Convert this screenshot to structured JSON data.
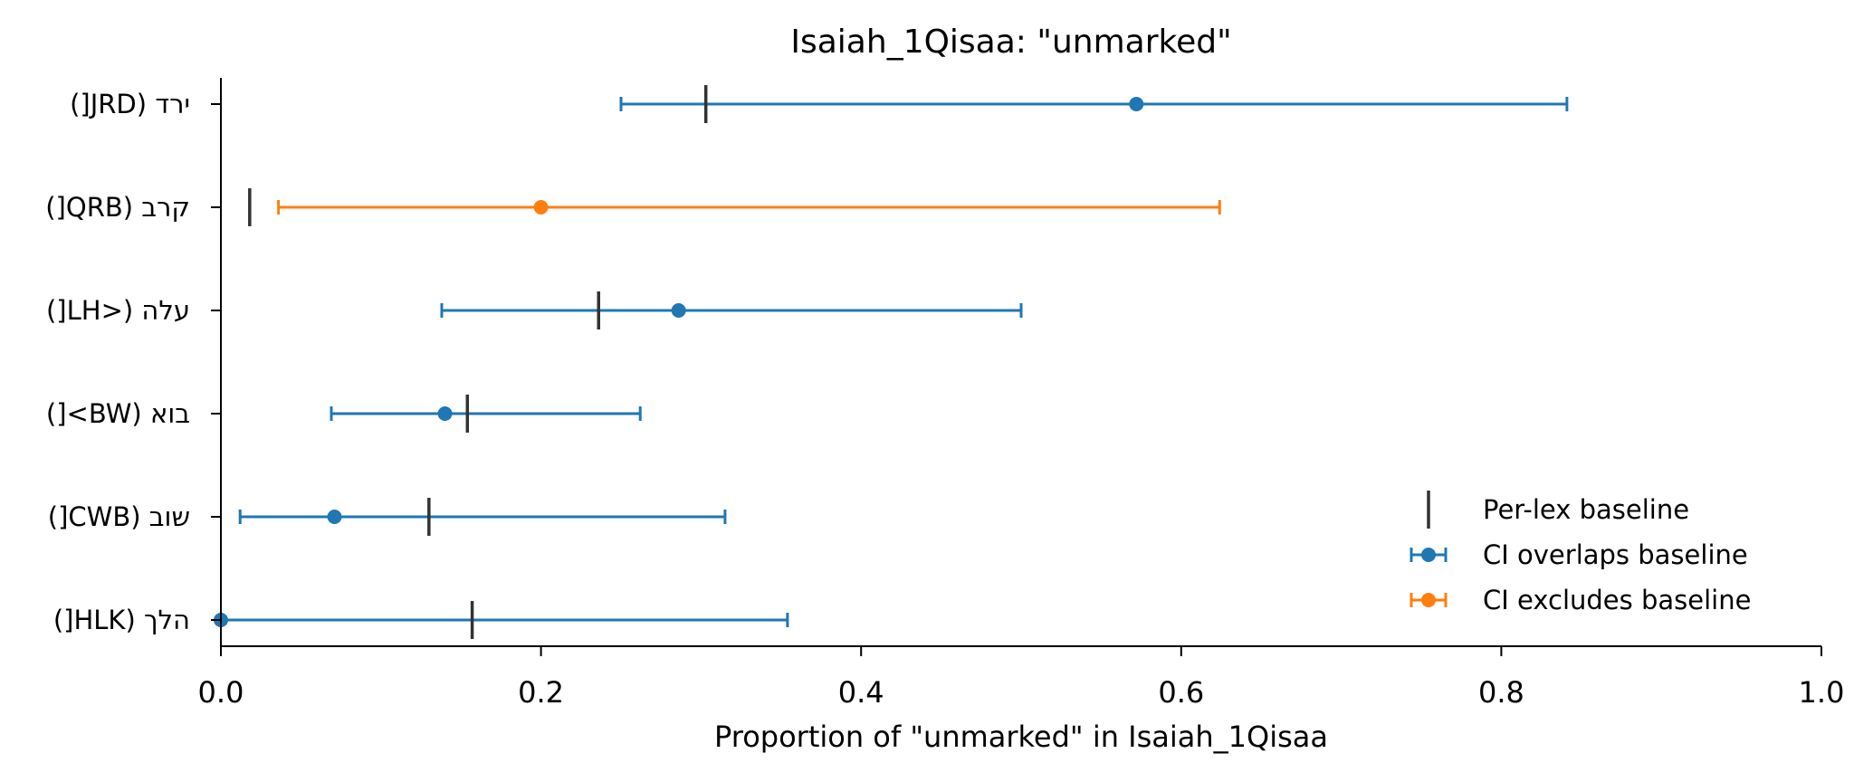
{
  "chart_data": {
    "type": "errorbar",
    "title": "Isaiah_1Qisaa: \"unmarked\"",
    "xlabel": "Proportion of \"unmarked\" in Isaiah_1Qisaa",
    "xlim": [
      0.0,
      1.0
    ],
    "xticks": [
      "0.0",
      "0.2",
      "0.4",
      "0.6",
      "0.8",
      "1.0"
    ],
    "grid": false,
    "legend_position": "bottom-right",
    "legend": [
      {
        "key": "baseline",
        "label": "Per-lex baseline",
        "color": "#333333"
      },
      {
        "key": "overlap",
        "label": "CI overlaps baseline",
        "color": "#1f77b4"
      },
      {
        "key": "exclude",
        "label": "CI excludes baseline",
        "color": "#ff7f0e"
      }
    ],
    "rows": [
      {
        "label": "ירד (JRD[)",
        "value": 0.572,
        "ci_low": 0.25,
        "ci_high": 0.841,
        "baseline": 0.303,
        "status": "overlap"
      },
      {
        "label": "קרב (QRB[)",
        "value": 0.2,
        "ci_low": 0.036,
        "ci_high": 0.624,
        "baseline": 0.018,
        "status": "exclude"
      },
      {
        "label": "עלה (<LH[)",
        "value": 0.286,
        "ci_low": 0.138,
        "ci_high": 0.5,
        "baseline": 0.236,
        "status": "overlap"
      },
      {
        "label": "בוא (BW>[)",
        "value": 0.14,
        "ci_low": 0.069,
        "ci_high": 0.262,
        "baseline": 0.154,
        "status": "overlap"
      },
      {
        "label": "שוב (CWB[)",
        "value": 0.071,
        "ci_low": 0.012,
        "ci_high": 0.315,
        "baseline": 0.13,
        "status": "overlap"
      },
      {
        "label": "הלך (HLK[)",
        "value": 0.0,
        "ci_low": 0.0,
        "ci_high": 0.354,
        "baseline": 0.157,
        "status": "overlap"
      }
    ]
  }
}
